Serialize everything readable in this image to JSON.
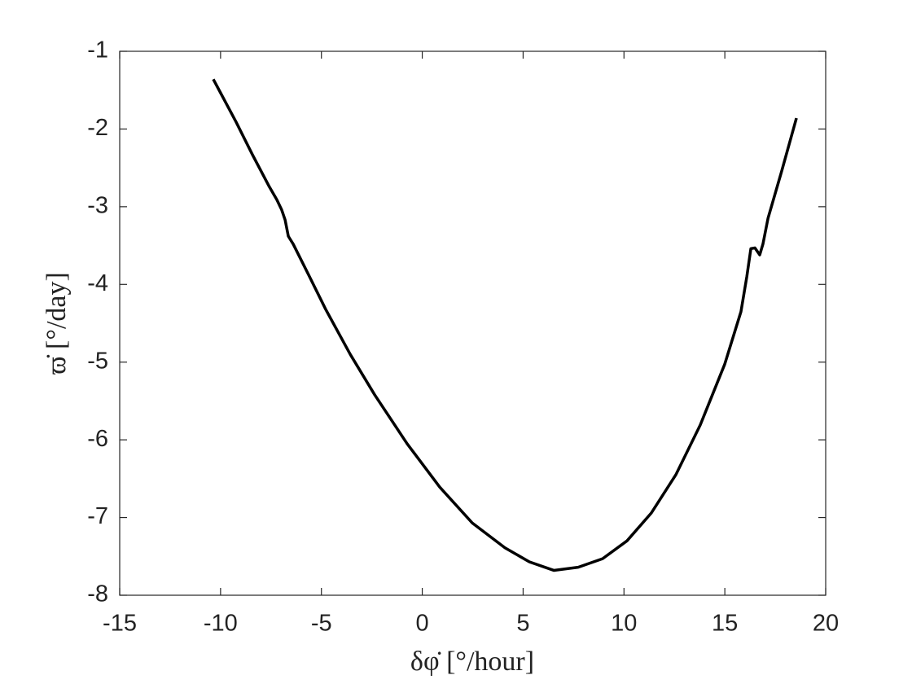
{
  "chart_data": {
    "type": "line",
    "xlabel": "δφ̇ [°/hour]",
    "ylabel": "ϖ̇ [°/day]",
    "xlim": [
      -15,
      20
    ],
    "xticks": [
      -15,
      -10,
      -5,
      0,
      5,
      10,
      15,
      20
    ],
    "ylim": [
      -8,
      -1
    ],
    "yticks": [
      -8,
      -7,
      -6,
      -5,
      -4,
      -3,
      -2,
      -1
    ],
    "grid": false,
    "series": [
      {
        "color": "#000000",
        "x": [
          -10.36,
          -10.03,
          -9.23,
          -8.42,
          -7.61,
          -7.21,
          -6.97,
          -6.8,
          -6.64,
          -6.4,
          -5.59,
          -4.79,
          -3.57,
          -2.36,
          -0.75,
          0.87,
          2.48,
          4.1,
          5.31,
          6.52,
          7.73,
          8.94,
          10.15,
          11.36,
          12.57,
          13.78,
          14.99,
          15.8,
          16.09,
          16.29,
          16.49,
          16.73,
          16.89,
          17.14,
          17.82,
          18.55
        ],
        "values": [
          -1.36,
          -1.52,
          -1.91,
          -2.33,
          -2.73,
          -2.91,
          -3.04,
          -3.17,
          -3.38,
          -3.48,
          -3.9,
          -4.32,
          -4.9,
          -5.42,
          -6.05,
          -6.61,
          -7.07,
          -7.39,
          -7.57,
          -7.68,
          -7.64,
          -7.53,
          -7.3,
          -6.94,
          -6.45,
          -5.81,
          -5.03,
          -4.35,
          -3.9,
          -3.54,
          -3.53,
          -3.62,
          -3.48,
          -3.15,
          -2.54,
          -1.86
        ]
      }
    ]
  }
}
